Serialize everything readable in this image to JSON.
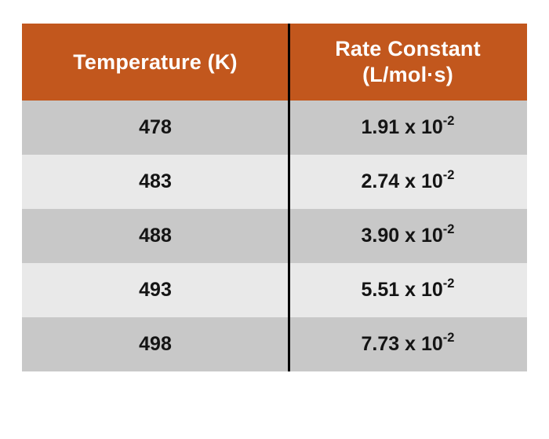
{
  "page": {
    "background_color": "#ffffff"
  },
  "table": {
    "header": {
      "col1_label": "Temperature (K)",
      "col2_line1": "Rate Constant",
      "col2_line2": "(L/mol·s)",
      "background_color": "#c2571d",
      "text_color": "#ffffff"
    },
    "row_color_dark": "#c8c8c8",
    "row_color_light": "#e9e9e9",
    "divider_color": "#000000"
  },
  "chart_data": {
    "type": "table",
    "title": "",
    "columns": [
      "Temperature (K)",
      "Rate Constant (L/mol·s)"
    ],
    "rows": [
      [
        "478",
        "1.91 x 10^-2"
      ],
      [
        "483",
        "2.74 x 10^-2"
      ],
      [
        "488",
        "3.90 x 10^-2"
      ],
      [
        "493",
        "5.51 x 10^-2"
      ],
      [
        "498",
        "7.73 x 10^-2"
      ]
    ],
    "display_rows": [
      {
        "temperature": "478",
        "rate_base": "1.91 x 10",
        "rate_exp": "-2"
      },
      {
        "temperature": "483",
        "rate_base": "2.74 x 10",
        "rate_exp": "-2"
      },
      {
        "temperature": "488",
        "rate_base": "3.90 x 10",
        "rate_exp": "-2"
      },
      {
        "temperature": "493",
        "rate_base": "5.51 x 10",
        "rate_exp": "-2"
      },
      {
        "temperature": "498",
        "rate_base": "7.73 x 10",
        "rate_exp": "-2"
      }
    ]
  }
}
